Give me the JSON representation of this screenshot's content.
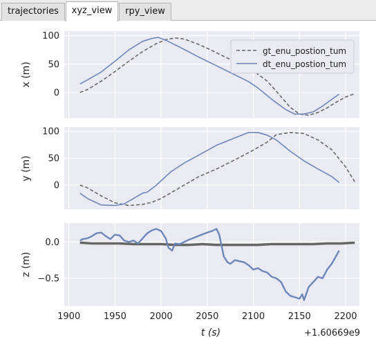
{
  "tabs": [
    {
      "label": "trajectories",
      "active": false
    },
    {
      "label": "xyz_view",
      "active": true
    },
    {
      "label": "rpy_view",
      "active": false
    }
  ],
  "colors": {
    "gt": "#666666",
    "dt": "#6b86b8",
    "panel_bg": "#eaeaf2",
    "grid": "#ffffff"
  },
  "chart_data": {
    "type": "line",
    "x_offset_label": "+1.60669e9",
    "xlabel": "t (s)",
    "xlim": [
      1895,
      2215
    ],
    "xticks": [
      1900,
      1950,
      2000,
      2050,
      2100,
      2150,
      2200
    ],
    "legend": {
      "placement": "top-right",
      "entries": [
        "gt_enu_postion_tum",
        "dt_enu_postion_tum"
      ]
    },
    "subplots": [
      {
        "ylabel": "x (m)",
        "ylim": [
          -45,
          108
        ],
        "yticks": [
          0,
          50,
          100
        ],
        "series": [
          {
            "name": "gt_enu_postion_tum",
            "style": "dashed",
            "x": [
              1912,
              1920,
              1935,
              1950,
              1965,
              1980,
              1995,
              2005,
              2015,
              2025,
              2040,
              2055,
              2070,
              2085,
              2100,
              2115,
              2125,
              2140,
              2150,
              2160,
              2170,
              2180,
              2190,
              2200,
              2210
            ],
            "y": [
              0,
              5,
              20,
              37,
              55,
              72,
              86,
              93,
              96,
              94,
              85,
              74,
              62,
              51,
              38,
              20,
              2,
              -26,
              -38,
              -40,
              -35,
              -27,
              -17,
              -8,
              -2
            ]
          },
          {
            "name": "dt_enu_postion_tum",
            "style": "solid",
            "x": [
              1912,
              1920,
              1935,
              1950,
              1965,
              1980,
              1990,
              1997,
              2005,
              2020,
              2040,
              2060,
              2080,
              2095,
              2105,
              2120,
              2135,
              2145,
              2155,
              2165,
              2175,
              2185,
              2193
            ],
            "y": [
              15,
              22,
              36,
              55,
              75,
              90,
              95,
              97,
              92,
              80,
              63,
              47,
              31,
              19,
              8,
              -12,
              -30,
              -38,
              -38,
              -34,
              -24,
              -12,
              -3
            ]
          }
        ]
      },
      {
        "ylabel": "y (m)",
        "ylim": [
          -45,
          108
        ],
        "yticks": [
          0,
          50,
          100
        ],
        "series": [
          {
            "name": "gt_enu_postion_tum",
            "style": "dashed",
            "x": [
              1912,
              1920,
              1935,
              1950,
              1965,
              1980,
              1990,
              2000,
              2020,
              2040,
              2060,
              2080,
              2100,
              2115,
              2125,
              2140,
              2155,
              2170,
              2185,
              2200,
              2210
            ],
            "y": [
              0,
              -5,
              -20,
              -33,
              -38,
              -36,
              -32,
              -25,
              -5,
              15,
              30,
              47,
              65,
              80,
              94,
              98,
              96,
              84,
              66,
              34,
              6
            ]
          },
          {
            "name": "dt_enu_postion_tum",
            "style": "solid",
            "x": [
              1912,
              1920,
              1935,
              1950,
              1960,
              1970,
              1980,
              1985,
              1995,
              2010,
              2025,
              2040,
              2060,
              2080,
              2095,
              2105,
              2115,
              2125,
              2140,
              2155,
              2170,
              2185,
              2193
            ],
            "y": [
              -15,
              -25,
              -37,
              -38,
              -35,
              -25,
              -15,
              -13,
              0,
              24,
              41,
              55,
              74,
              88,
              98,
              98,
              93,
              84,
              63,
              45,
              30,
              16,
              5
            ]
          }
        ]
      },
      {
        "ylabel": "z (m)",
        "ylim": [
          -0.88,
          0.26
        ],
        "yticks": [
          0.0,
          -0.5
        ],
        "ytick_labels": [
          "0.0",
          "−0.5"
        ],
        "series": [
          {
            "name": "gt_enu_postion_tum",
            "style": "solid",
            "x": [
              1912,
              1925,
              1940,
              1955,
              1970,
              1985,
              2000,
              2015,
              2030,
              2045,
              2060,
              2075,
              2090,
              2105,
              2120,
              2135,
              2150,
              2165,
              2180,
              2195,
              2210
            ],
            "y": [
              -0.01,
              -0.02,
              -0.02,
              -0.02,
              -0.03,
              -0.03,
              -0.03,
              -0.04,
              -0.04,
              -0.03,
              -0.04,
              -0.04,
              -0.04,
              -0.04,
              -0.03,
              -0.03,
              -0.03,
              -0.03,
              -0.02,
              -0.02,
              -0.01
            ]
          },
          {
            "name": "dt_enu_postion_tum",
            "style": "solid",
            "x": [
              1912,
              1915,
              1920,
              1925,
              1930,
              1935,
              1940,
              1945,
              1950,
              1955,
              1960,
              1965,
              1970,
              1975,
              1980,
              1985,
              1990,
              1995,
              2000,
              2005,
              2008,
              2012,
              2015,
              2020,
              2030,
              2040,
              2050,
              2055,
              2060,
              2063,
              2068,
              2072,
              2075,
              2080,
              2090,
              2095,
              2100,
              2105,
              2110,
              2115,
              2120,
              2125,
              2130,
              2135,
              2140,
              2145,
              2150,
              2153,
              2155,
              2160,
              2165,
              2170,
              2175,
              2180,
              2185,
              2193
            ],
            "y": [
              0.02,
              0.04,
              0.05,
              0.08,
              0.12,
              0.13,
              0.08,
              0.04,
              0.1,
              0.09,
              0.02,
              0.0,
              0.02,
              -0.02,
              0.05,
              0.12,
              0.16,
              0.18,
              0.15,
              0.05,
              -0.08,
              -0.12,
              -0.02,
              -0.03,
              0.03,
              0.08,
              0.13,
              0.15,
              0.18,
              0.1,
              -0.2,
              -0.28,
              -0.3,
              -0.25,
              -0.28,
              -0.32,
              -0.38,
              -0.36,
              -0.4,
              -0.42,
              -0.48,
              -0.5,
              -0.55,
              -0.68,
              -0.74,
              -0.76,
              -0.78,
              -0.72,
              -0.8,
              -0.62,
              -0.55,
              -0.48,
              -0.5,
              -0.38,
              -0.3,
              -0.12
            ]
          }
        ]
      }
    ]
  }
}
